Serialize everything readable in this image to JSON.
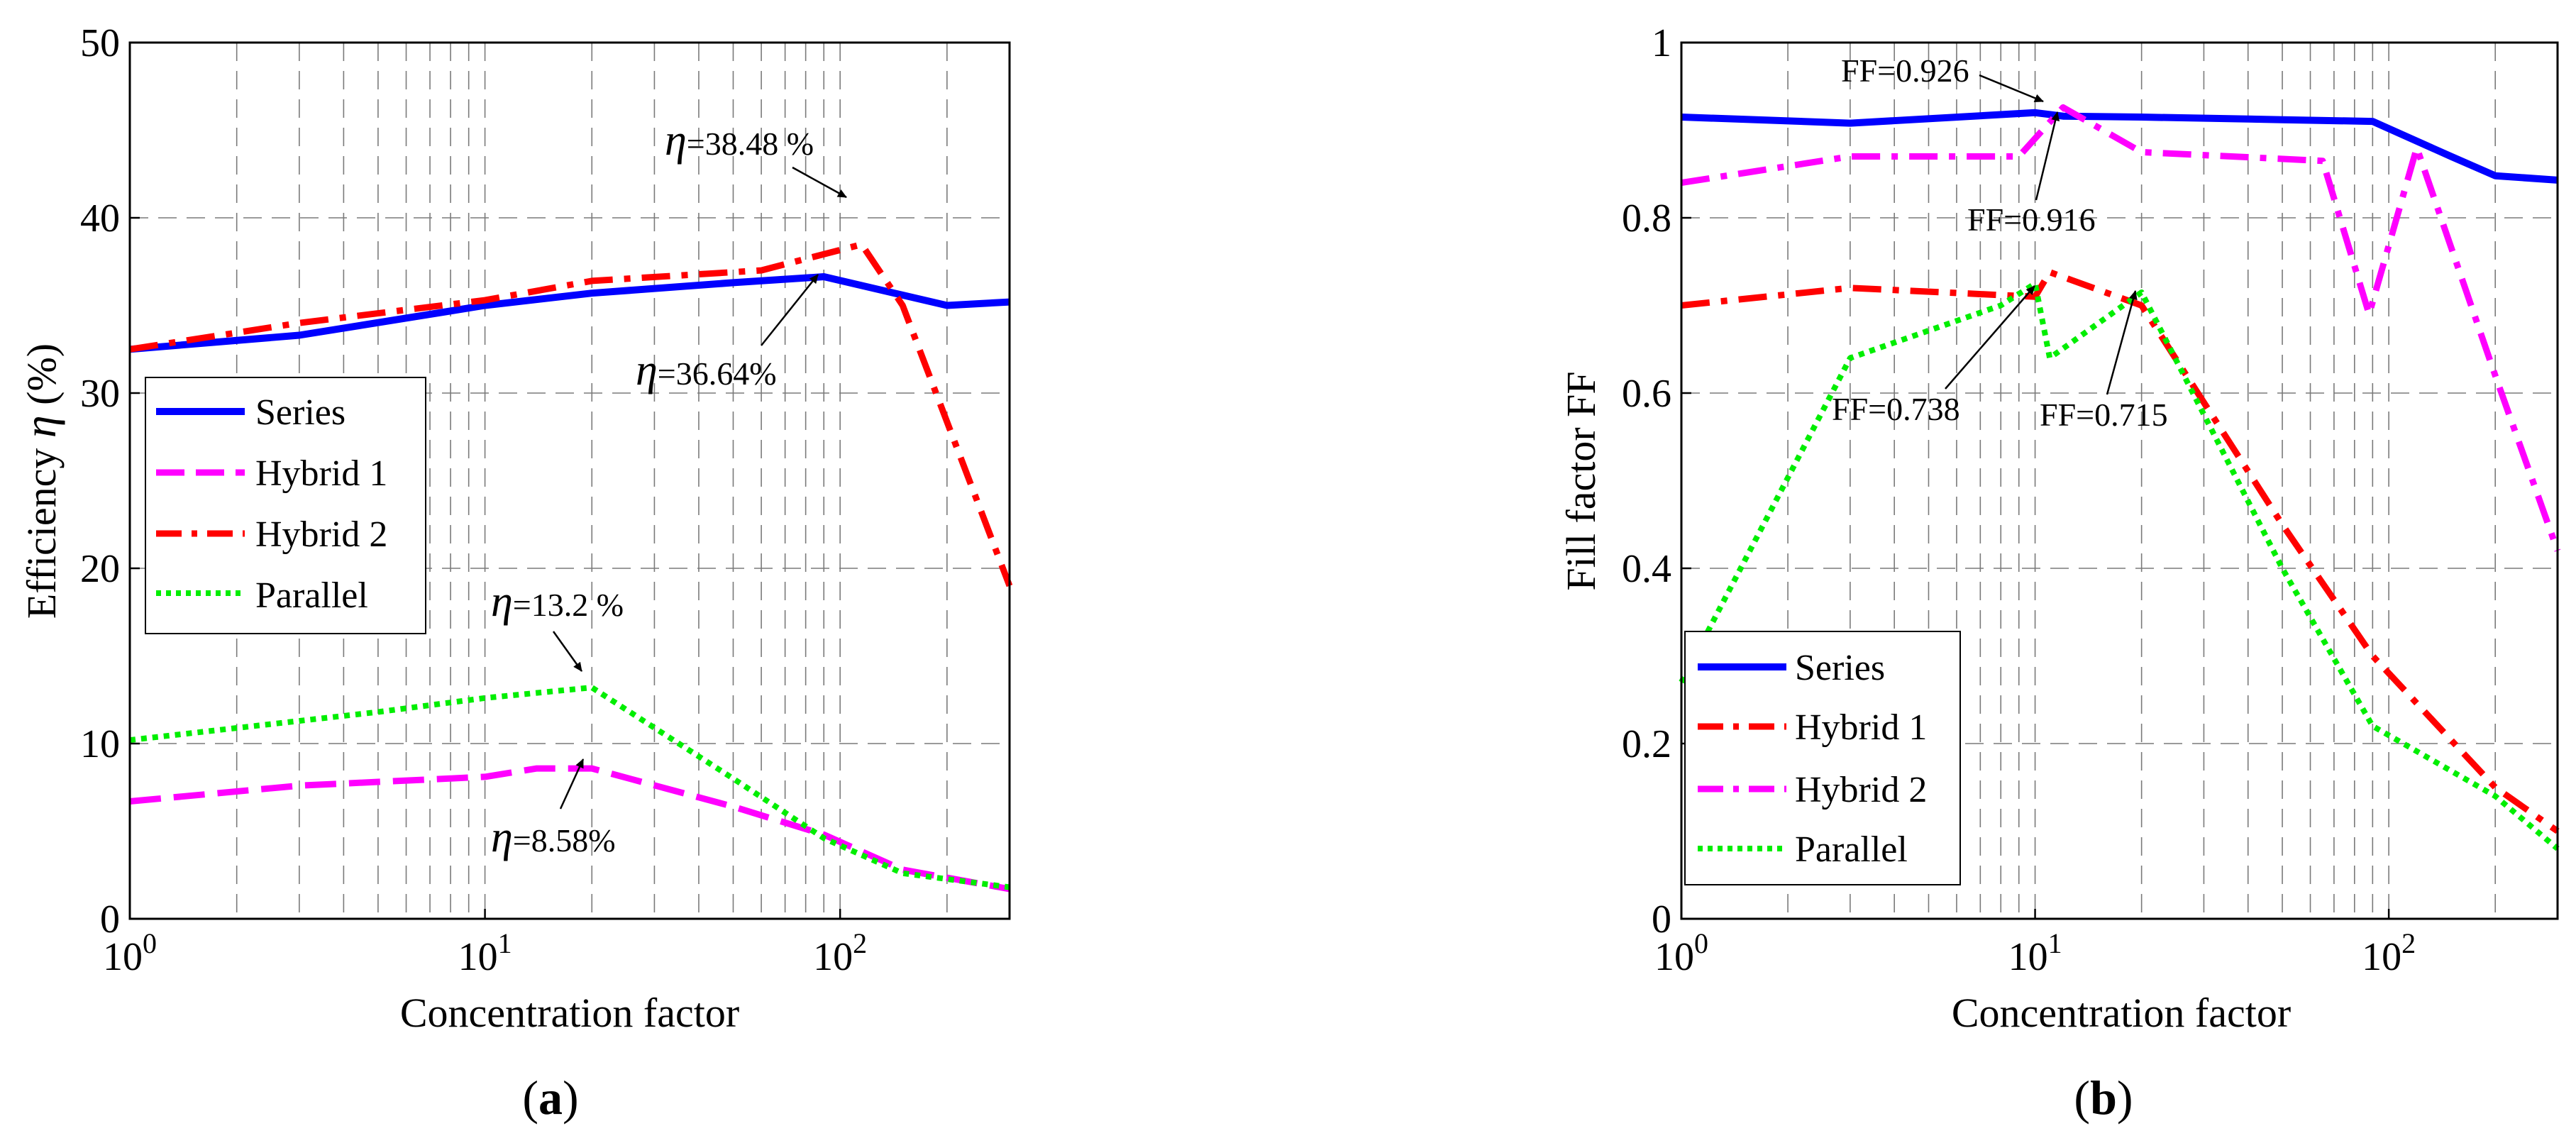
{
  "chart_data": [
    {
      "type": "line",
      "panel_label": "(a)",
      "panel_letter": "a",
      "xlabel": "Concentration factor",
      "ylabel_text": "Efficiency ",
      "ylabel_symbol": "η",
      "ylabel_unit": " (%)",
      "x_scale": "log",
      "xlim": [
        1,
        300
      ],
      "ylim": [
        0,
        50
      ],
      "yticks": [
        0,
        10,
        20,
        30,
        40,
        50
      ],
      "ytick_labels": [
        "0",
        "10",
        "20",
        "30",
        "40",
        "50"
      ],
      "xticks": [
        {
          "value": 1,
          "base": "10",
          "exp": "0"
        },
        {
          "value": 10,
          "base": "10",
          "exp": "1"
        },
        {
          "value": 100,
          "base": "10",
          "exp": "2"
        }
      ],
      "grid": true,
      "legend_position": "center-left",
      "series": [
        {
          "name": "Series",
          "color": "#0000ff",
          "style": "solid",
          "x": [
            1,
            3,
            10,
            20,
            50,
            90,
            200,
            300
          ],
          "y": [
            32.5,
            33.3,
            35.0,
            35.7,
            36.3,
            36.64,
            35.0,
            35.2
          ]
        },
        {
          "name": "Hybrid 1",
          "color": "#ff00ff",
          "style": "dash",
          "x": [
            1,
            3,
            10,
            14,
            20,
            50,
            90,
            150,
            300
          ],
          "y": [
            6.7,
            7.6,
            8.1,
            8.58,
            8.58,
            6.4,
            4.8,
            2.8,
            1.7
          ]
        },
        {
          "name": "Hybrid 2",
          "color": "#ff0000",
          "style": "dashdot",
          "x": [
            1,
            3,
            10,
            20,
            60,
            115,
            150,
            300
          ],
          "y": [
            32.5,
            34.0,
            35.3,
            36.4,
            37.0,
            38.48,
            35.0,
            19.0
          ]
        },
        {
          "name": "Parallel",
          "color": "#00ee00",
          "style": "dot",
          "x": [
            1,
            5,
            10,
            20,
            50,
            90,
            150,
            300
          ],
          "y": [
            10.2,
            11.8,
            12.6,
            13.2,
            8.0,
            4.6,
            2.6,
            1.8
          ]
        }
      ],
      "annotations": [
        {
          "sym": "η",
          "text": "=38.48 %"
        },
        {
          "sym": "η",
          "text": "=36.64%"
        },
        {
          "sym": "η",
          "text": "=13.2 %"
        },
        {
          "sym": "η",
          "text": "=8.58%"
        }
      ]
    },
    {
      "type": "line",
      "panel_label": "(b)",
      "panel_letter": "b",
      "xlabel": "Concentration factor",
      "ylabel": "Fill factor FF",
      "x_scale": "log",
      "xlim": [
        1,
        300
      ],
      "ylim": [
        0,
        1
      ],
      "yticks": [
        0,
        0.2,
        0.4,
        0.6,
        0.8,
        1
      ],
      "ytick_labels": [
        "0",
        "0.2",
        "0.4",
        "0.6",
        "0.8",
        "1"
      ],
      "xticks": [
        {
          "value": 1,
          "base": "10",
          "exp": "0"
        },
        {
          "value": 10,
          "base": "10",
          "exp": "1"
        },
        {
          "value": 100,
          "base": "10",
          "exp": "2"
        }
      ],
      "grid": true,
      "legend_position": "bottom-left",
      "series": [
        {
          "name": "Series",
          "color": "#0000ff",
          "style": "solid",
          "x": [
            1,
            3,
            10,
            12,
            20,
            50,
            90,
            150,
            200,
            300
          ],
          "y": [
            0.915,
            0.908,
            0.92,
            0.916,
            0.915,
            0.912,
            0.91,
            0.87,
            0.848,
            0.843
          ]
        },
        {
          "name": "Hybrid 1",
          "color": "#ff0000",
          "style": "dashdot",
          "x": [
            1,
            3,
            10,
            11,
            20,
            50,
            90,
            200,
            300
          ],
          "y": [
            0.7,
            0.72,
            0.71,
            0.738,
            0.7,
            0.45,
            0.3,
            0.15,
            0.1
          ]
        },
        {
          "name": "Hybrid 2",
          "color": "#ff00ff",
          "style": "dashdot",
          "x": [
            1,
            3,
            9,
            12,
            20,
            65,
            88,
            120,
            200,
            300
          ],
          "y": [
            0.84,
            0.87,
            0.87,
            0.926,
            0.875,
            0.865,
            0.69,
            0.88,
            0.62,
            0.42
          ]
        },
        {
          "name": "Parallel",
          "color": "#00ee00",
          "style": "dot",
          "x": [
            1,
            3,
            8,
            10,
            11,
            20,
            50,
            90,
            200,
            300
          ],
          "y": [
            0.27,
            0.64,
            0.7,
            0.725,
            0.64,
            0.715,
            0.4,
            0.22,
            0.14,
            0.08
          ]
        }
      ],
      "annotations": [
        {
          "text": "FF=0.926"
        },
        {
          "text": "FF=0.916"
        },
        {
          "text": "FF=0.738"
        },
        {
          "text": "FF=0.715"
        }
      ]
    }
  ]
}
